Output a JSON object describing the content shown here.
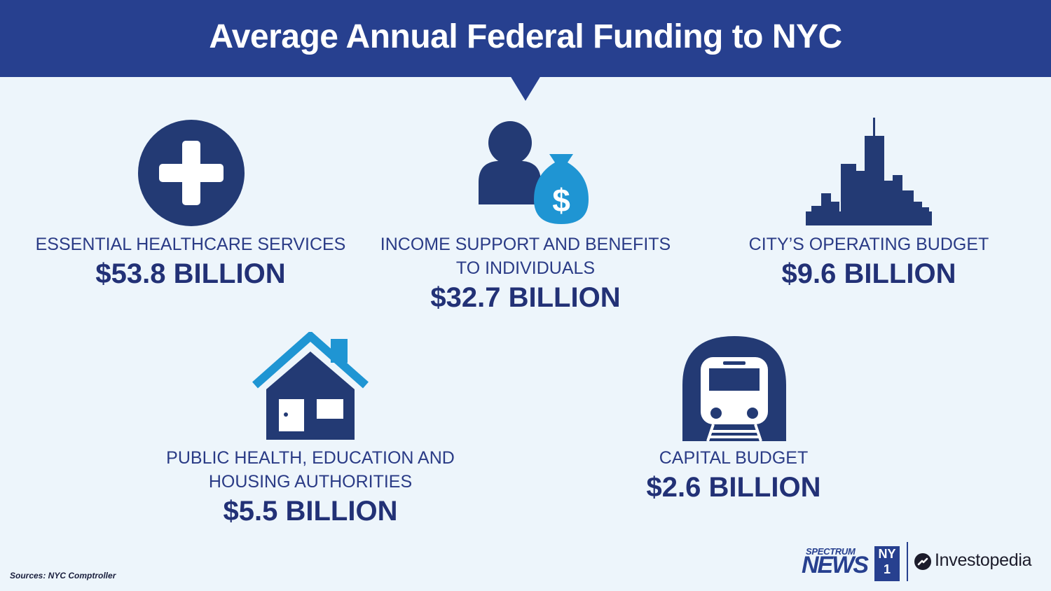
{
  "title": "Average Annual Federal Funding to NYC",
  "items": [
    {
      "label_lines": [
        "ESSENTIAL HEALTHCARE SERVICES"
      ],
      "amount": "$53.8 BILLION",
      "icon": "medical-cross-icon"
    },
    {
      "label_lines": [
        "INCOME SUPPORT AND BENEFITS",
        "TO INDIVIDUALS"
      ],
      "amount": "$32.7 BILLION",
      "icon": "person-money-bag-icon"
    },
    {
      "label_lines": [
        "CITY’S OPERATING BUDGET"
      ],
      "amount": "$9.6 BILLION",
      "icon": "skyline-icon"
    },
    {
      "label_lines": [
        "PUBLIC HEALTH, EDUCATION AND",
        "HOUSING AUTHORITIES"
      ],
      "amount": "$5.5 BILLION",
      "icon": "house-icon"
    },
    {
      "label_lines": [
        "CAPITAL BUDGET"
      ],
      "amount": "$2.6 BILLION",
      "icon": "subway-train-icon"
    }
  ],
  "dollar_sign": "$",
  "sources": "Sources: NYC Comptroller",
  "logos": {
    "spectrum_small": "SPECTRUM",
    "spectrum_big": "NEWS",
    "ny1_top": "NY",
    "ny1_bottom": "1",
    "investopedia": "Investopedia"
  },
  "colors": {
    "header": "#27408f",
    "background": "#edf5fb",
    "navy": "#25367f",
    "accent_blue": "#1f95d3"
  }
}
